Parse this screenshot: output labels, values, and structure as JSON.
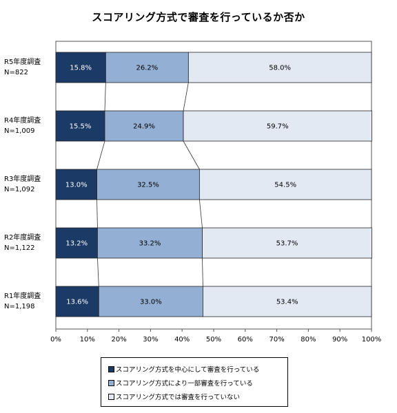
{
  "chart_data": {
    "type": "bar",
    "orientation": "horizontal",
    "stacked": "percent",
    "title": "スコアリング方式で審査を行っているか否か",
    "categories": [
      {
        "name": "R5年度調査",
        "n": "N=822"
      },
      {
        "name": "R4年度調査",
        "n": "N=1,009"
      },
      {
        "name": "R3年度調査",
        "n": "N=1,092"
      },
      {
        "name": "R2年度調査",
        "n": "N=1,122"
      },
      {
        "name": "R1年度調査",
        "n": "N=1,198"
      }
    ],
    "series": [
      {
        "name": "スコアリング方式を中心にして審査を行っている",
        "color": "#1b3a66",
        "label_color": "#ffffff",
        "values": [
          15.8,
          15.5,
          13.0,
          13.2,
          13.6
        ]
      },
      {
        "name": "スコアリング方式により一部審査を行っている",
        "color": "#93afd3",
        "label_color": "#000000",
        "values": [
          26.2,
          24.9,
          32.5,
          33.2,
          33.0
        ]
      },
      {
        "name": "スコアリング方式では審査を行っていない",
        "color": "#e3e9f3",
        "label_color": "#000000",
        "values": [
          58.0,
          59.7,
          54.5,
          53.7,
          53.4
        ]
      }
    ],
    "xlim": [
      0,
      100
    ],
    "x_ticks": [
      "0%",
      "10%",
      "20%",
      "30%",
      "40%",
      "50%",
      "60%",
      "70%",
      "80%",
      "90%",
      "100%"
    ],
    "legend_position": "bottom",
    "series_lines": true
  }
}
